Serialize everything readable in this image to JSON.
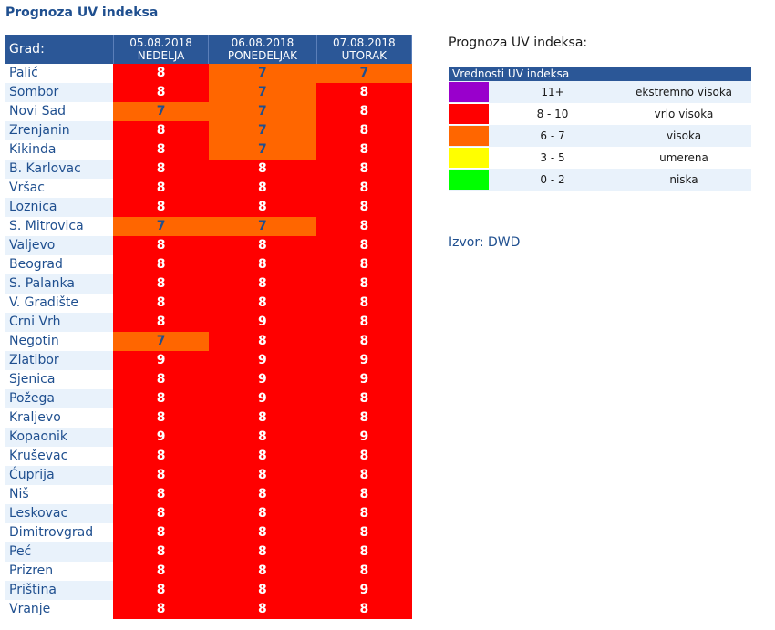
{
  "page_title": "Prognoza UV indeksa",
  "table": {
    "city_header": "Grad:",
    "days": [
      {
        "date": "05.08.2018",
        "name": "NEDELJA"
      },
      {
        "date": "06.08.2018",
        "name": "PONEDELJAK"
      },
      {
        "date": "07.08.2018",
        "name": "UTORAK"
      }
    ],
    "rows": [
      {
        "city": "Palić",
        "values": [
          "8",
          "7",
          "7"
        ]
      },
      {
        "city": "Sombor",
        "values": [
          "8",
          "7",
          "8"
        ]
      },
      {
        "city": "Novi Sad",
        "values": [
          "7",
          "7",
          "8"
        ]
      },
      {
        "city": "Zrenjanin",
        "values": [
          "8",
          "7",
          "8"
        ]
      },
      {
        "city": "Kikinda",
        "values": [
          "8",
          "7",
          "8"
        ]
      },
      {
        "city": "B. Karlovac",
        "values": [
          "8",
          "8",
          "8"
        ]
      },
      {
        "city": "Vršac",
        "values": [
          "8",
          "8",
          "8"
        ]
      },
      {
        "city": "Loznica",
        "values": [
          "8",
          "8",
          "8"
        ]
      },
      {
        "city": "S. Mitrovica",
        "values": [
          "7",
          "7",
          "8"
        ]
      },
      {
        "city": "Valjevo",
        "values": [
          "8",
          "8",
          "8"
        ]
      },
      {
        "city": "Beograd",
        "values": [
          "8",
          "8",
          "8"
        ]
      },
      {
        "city": "S. Palanka",
        "values": [
          "8",
          "8",
          "8"
        ]
      },
      {
        "city": "V. Gradište",
        "values": [
          "8",
          "8",
          "8"
        ]
      },
      {
        "city": "Crni Vrh",
        "values": [
          "8",
          "9",
          "8"
        ]
      },
      {
        "city": "Negotin",
        "values": [
          "7",
          "8",
          "8"
        ]
      },
      {
        "city": "Zlatibor",
        "values": [
          "9",
          "9",
          "9"
        ]
      },
      {
        "city": "Sjenica",
        "values": [
          "8",
          "9",
          "9"
        ]
      },
      {
        "city": "Požega",
        "values": [
          "8",
          "9",
          "8"
        ]
      },
      {
        "city": "Kraljevo",
        "values": [
          "8",
          "8",
          "8"
        ]
      },
      {
        "city": "Kopaonik",
        "values": [
          "9",
          "8",
          "9"
        ]
      },
      {
        "city": "Kruševac",
        "values": [
          "8",
          "8",
          "8"
        ]
      },
      {
        "city": "Ćuprija",
        "values": [
          "8",
          "8",
          "8"
        ]
      },
      {
        "city": "Niš",
        "values": [
          "8",
          "8",
          "8"
        ]
      },
      {
        "city": "Leskovac",
        "values": [
          "8",
          "8",
          "8"
        ]
      },
      {
        "city": "Dimitrovgrad",
        "values": [
          "8",
          "8",
          "8"
        ]
      },
      {
        "city": "Peć",
        "values": [
          "8",
          "8",
          "8"
        ]
      },
      {
        "city": "Prizren",
        "values": [
          "8",
          "8",
          "8"
        ]
      },
      {
        "city": "Priština",
        "values": [
          "8",
          "8",
          "9"
        ]
      },
      {
        "city": "Vranje",
        "values": [
          "8",
          "8",
          "8"
        ]
      }
    ]
  },
  "side_title": "Prognoza UV indeksa:",
  "legend": {
    "header": "Vrednosti UV indeksa",
    "items": [
      {
        "range": "11+",
        "desc": "ekstremno visoka",
        "color": "#9900cc"
      },
      {
        "range": "8 - 10",
        "desc": "vrlo visoka",
        "color": "#ff0000"
      },
      {
        "range": "6 - 7",
        "desc": "visoka",
        "color": "#ff6600"
      },
      {
        "range": "3 - 5",
        "desc": "umerena",
        "color": "#ffff00"
      },
      {
        "range": "0 - 2",
        "desc": "niska",
        "color": "#00ff00"
      }
    ]
  },
  "source": "Izvor: DWD"
}
